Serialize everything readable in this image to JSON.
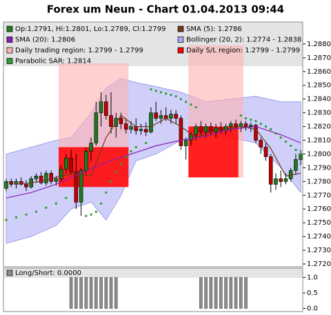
{
  "chart_data": [
    {
      "type": "candlestick",
      "title": "Forex um Neun - Chart 01.04.2013 09:44",
      "ylim": [
        1.2718,
        1.2896
      ],
      "yticks": [
        {
          "value": 1.272,
          "label": "1.2720"
        },
        {
          "value": 1.273,
          "label": "1.2730"
        },
        {
          "value": 1.274,
          "label": "1.2740"
        },
        {
          "value": 1.275,
          "label": "1.2750"
        },
        {
          "value": 1.276,
          "label": "1.2760"
        },
        {
          "value": 1.277,
          "label": "1.2770"
        },
        {
          "value": 1.278,
          "label": "1.2780"
        },
        {
          "value": 1.279,
          "label": "1.2790"
        },
        {
          "value": 1.28,
          "label": "1.2800"
        },
        {
          "value": 1.281,
          "label": "1.2810"
        },
        {
          "value": 1.282,
          "label": "1.2820"
        },
        {
          "value": 1.283,
          "label": "1.2830"
        },
        {
          "value": 1.284,
          "label": "1.2840"
        },
        {
          "value": 1.285,
          "label": "1.2850"
        },
        {
          "value": 1.286,
          "label": "1.2860"
        },
        {
          "value": 1.287,
          "label": "1.2870"
        },
        {
          "value": 1.288,
          "label": "1.2880"
        }
      ],
      "grid": false,
      "series": [
        {
          "name": "Op:1.2791, Hi:1.2801, Lo:1.2789, Cl:1.2799",
          "kind": "ohlc",
          "color": "#1f7a1f",
          "down_color": "#c00000",
          "open": [
            1.2775,
            1.278,
            1.2778,
            1.278,
            1.2778,
            1.2776,
            1.2782,
            1.2784,
            1.2779,
            1.2786,
            1.278,
            1.2782,
            1.2789,
            1.2797,
            1.2787,
            1.2765,
            1.2788,
            1.2802,
            1.2808,
            1.283,
            1.2838,
            1.2828,
            1.282,
            1.2826,
            1.2822,
            1.2818,
            1.282,
            1.2817,
            1.2818,
            1.2816,
            1.283,
            1.2826,
            1.2828,
            1.2826,
            1.2829,
            1.2826,
            1.2806,
            1.281,
            1.2814,
            1.282,
            1.2816,
            1.282,
            1.2816,
            1.2819,
            1.2817,
            1.282,
            1.2822,
            1.282,
            1.2822,
            1.282,
            1.2821,
            1.281,
            1.2805,
            1.2798,
            1.2778,
            1.2782,
            1.278,
            1.2782,
            1.2788,
            1.2796
          ],
          "high": [
            1.2782,
            1.2782,
            1.2782,
            1.2783,
            1.2781,
            1.2784,
            1.2786,
            1.2787,
            1.2788,
            1.2788,
            1.2784,
            1.2792,
            1.28,
            1.2803,
            1.28,
            1.279,
            1.2805,
            1.2812,
            1.2838,
            1.2845,
            1.2843,
            1.2845,
            1.283,
            1.283,
            1.2826,
            1.2824,
            1.2826,
            1.2822,
            1.2823,
            1.2834,
            1.2838,
            1.2832,
            1.2834,
            1.2832,
            1.2832,
            1.2828,
            1.2812,
            1.2816,
            1.2822,
            1.2824,
            1.2822,
            1.2823,
            1.2822,
            1.2823,
            1.2822,
            1.2824,
            1.2825,
            1.2824,
            1.2824,
            1.2823,
            1.2822,
            1.2812,
            1.2808,
            1.28,
            1.2786,
            1.2788,
            1.2786,
            1.279,
            1.28,
            1.2803
          ],
          "low": [
            1.2773,
            1.2776,
            1.2775,
            1.2777,
            1.2773,
            1.2775,
            1.2779,
            1.2778,
            1.2777,
            1.2778,
            1.2777,
            1.278,
            1.2786,
            1.2785,
            1.276,
            1.2755,
            1.2786,
            1.2795,
            1.2806,
            1.282,
            1.2825,
            1.2815,
            1.2812,
            1.2818,
            1.2815,
            1.2815,
            1.2814,
            1.2814,
            1.2813,
            1.2815,
            1.2824,
            1.2822,
            1.2824,
            1.2822,
            1.2822,
            1.2803,
            1.2796,
            1.2806,
            1.281,
            1.2814,
            1.2812,
            1.2814,
            1.2812,
            1.2815,
            1.2814,
            1.2816,
            1.2818,
            1.2816,
            1.2817,
            1.2816,
            1.2808,
            1.28,
            1.2795,
            1.2772,
            1.2774,
            1.2776,
            1.2778,
            1.278,
            1.2785,
            1.2792
          ],
          "close": [
            1.278,
            1.2778,
            1.278,
            1.2778,
            1.2776,
            1.2782,
            1.2784,
            1.2779,
            1.2786,
            1.278,
            1.2782,
            1.2789,
            1.2797,
            1.2787,
            1.2765,
            1.2788,
            1.2802,
            1.2808,
            1.283,
            1.2838,
            1.2828,
            1.282,
            1.2826,
            1.2822,
            1.2818,
            1.282,
            1.2817,
            1.2818,
            1.2816,
            1.283,
            1.2826,
            1.2828,
            1.2826,
            1.2829,
            1.2826,
            1.2806,
            1.281,
            1.2814,
            1.282,
            1.2816,
            1.282,
            1.2816,
            1.2819,
            1.2817,
            1.282,
            1.2822,
            1.282,
            1.2822,
            1.282,
            1.2821,
            1.281,
            1.2805,
            1.2798,
            1.2778,
            1.2782,
            1.278,
            1.2782,
            1.2788,
            1.2796,
            1.28
          ]
        },
        {
          "name": "SMA (5): 1.2786",
          "kind": "line",
          "color": "#6b3a1e",
          "x": [
            2,
            5,
            8,
            11,
            14,
            17,
            20,
            23,
            26,
            29,
            32,
            35,
            38,
            41,
            44,
            47,
            50,
            53,
            56,
            59
          ],
          "values": [
            1.2778,
            1.2779,
            1.2781,
            1.2784,
            1.2786,
            1.2784,
            1.2812,
            1.2828,
            1.282,
            1.282,
            1.2826,
            1.282,
            1.2812,
            1.2816,
            1.2818,
            1.282,
            1.2818,
            1.2804,
            1.2784,
            1.2786
          ]
        },
        {
          "name": "SMA (20): 1.2806",
          "kind": "line",
          "color": "#8a1fb5",
          "x": [
            0,
            5,
            10,
            15,
            20,
            25,
            30,
            35,
            40,
            45,
            50,
            55,
            59
          ],
          "values": [
            1.2768,
            1.2772,
            1.2778,
            1.2786,
            1.2794,
            1.28,
            1.2806,
            1.281,
            1.2813,
            1.2818,
            1.282,
            1.2814,
            1.2808
          ]
        },
        {
          "name": "Bollinger (20, 2): 1.2774 - 1.2838",
          "kind": "band",
          "color": "#a8a8f5",
          "x": [
            0,
            5,
            10,
            13,
            17,
            20,
            23,
            26,
            30,
            35,
            40,
            45,
            50,
            55,
            59
          ],
          "upper": [
            1.28,
            1.2805,
            1.281,
            1.2812,
            1.283,
            1.2848,
            1.2855,
            1.2852,
            1.2849,
            1.2845,
            1.2838,
            1.284,
            1.2842,
            1.2838,
            1.2838
          ],
          "lower": [
            1.2735,
            1.274,
            1.2748,
            1.276,
            1.2765,
            1.2752,
            1.277,
            1.2795,
            1.28,
            1.281,
            1.2814,
            1.2812,
            1.2808,
            1.279,
            1.2772
          ]
        },
        {
          "name": "Daily trading region: 1.2799 - 1.2799",
          "kind": "region",
          "color": "#ffb0b0",
          "areas": [
            {
              "x": [
                11,
                24
              ],
              "y": [
                1.2776,
                1.2866
              ]
            },
            {
              "x": [
                37,
                47
              ],
              "y": [
                1.2783,
                1.2879
              ]
            }
          ]
        },
        {
          "name": "Daily S/L region: 1.2799 - 1.2799",
          "kind": "region",
          "color": "#ff0000",
          "areas": [
            {
              "x": [
                11,
                24
              ],
              "y": [
                1.2776,
                1.2805
              ]
            },
            {
              "x": [
                37,
                46
              ],
              "y": [
                1.2783,
                1.282
              ]
            }
          ]
        },
        {
          "name": "Parabolic SAR: 1.2814",
          "kind": "dots",
          "color": "#2e9e2e",
          "x": [
            0,
            2,
            4,
            6,
            8,
            10,
            12,
            16,
            17,
            18,
            19,
            20,
            21,
            22,
            23,
            24,
            25,
            26,
            28,
            29,
            30,
            31,
            32,
            33,
            34,
            35,
            36,
            37,
            38,
            47,
            48,
            49,
            50,
            51,
            52,
            53,
            54,
            55,
            56,
            57,
            58,
            59
          ],
          "values": [
            1.2752,
            1.2754,
            1.2756,
            1.2758,
            1.2761,
            1.2764,
            1.2768,
            1.2755,
            1.2756,
            1.2758,
            1.2764,
            1.2772,
            1.278,
            1.2787,
            1.2793,
            1.2798,
            1.2802,
            1.2805,
            1.2808,
            1.2847,
            1.2846,
            1.2845,
            1.2844,
            1.2843,
            1.2842,
            1.284,
            1.2838,
            1.2836,
            1.2834,
            1.2828,
            1.2826,
            1.2825,
            1.2824,
            1.2822,
            1.282,
            1.2818,
            1.2815,
            1.2812,
            1.2809,
            1.2806,
            1.2803,
            1.28
          ]
        }
      ]
    },
    {
      "type": "bar",
      "name": "Long/Short: 0.0000",
      "color": "#8c8c8c",
      "ylim": [
        -0.1,
        1.3
      ],
      "yticks": [
        {
          "value": 0,
          "label": "0.0"
        },
        0.5,
        {
          "value": 1,
          "label": "1.0"
        }
      ],
      "values": [
        0,
        0,
        0,
        0,
        0,
        0,
        0,
        0,
        0,
        0,
        0,
        0,
        0,
        1,
        1,
        1,
        1,
        1,
        1,
        1,
        1,
        1,
        1,
        0,
        0,
        0,
        0,
        0,
        0,
        0,
        0,
        0,
        0,
        0,
        0,
        0,
        0,
        0,
        0,
        1,
        1,
        1,
        1,
        1,
        1,
        1,
        1,
        1,
        1,
        0,
        0,
        0,
        0,
        0,
        0,
        0,
        0,
        0,
        0,
        0
      ]
    }
  ]
}
